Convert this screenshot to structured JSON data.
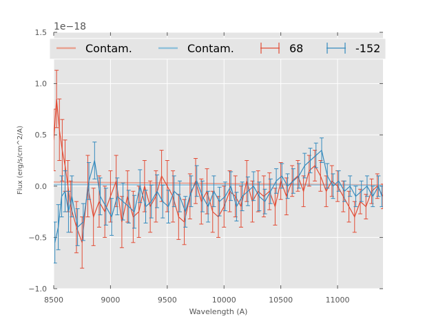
{
  "chart_data": {
    "type": "line",
    "title": "",
    "xlabel": "Wavelength (A)",
    "ylabel": "Flux (erg/s/cm^2/A)",
    "xlim": [
      8500,
      11400
    ],
    "ylim": [
      -1.0,
      1.5
    ],
    "scale_label": "1e−18",
    "x_ticks": [
      8500,
      9000,
      9500,
      10000,
      10500,
      11000
    ],
    "x_tick_labels": [
      "8500",
      "9000",
      "9500",
      "10000",
      "10500",
      "11000"
    ],
    "y_ticks": [
      -1.0,
      -0.5,
      0.0,
      0.5,
      1.0,
      1.5
    ],
    "y_tick_labels": [
      "−1.0",
      "−0.5",
      "0.0",
      "0.5",
      "1.0",
      "1.5"
    ],
    "grid": true,
    "legend_position": "top",
    "legend": [
      "Contam.",
      "Contam.",
      "68",
      "-152"
    ],
    "colors": {
      "series_68": "#e24a33",
      "series_152": "#348abd",
      "contam_68": "#e8a08f",
      "contam_152": "#8fc0da",
      "panel_bg": "#e5e5e5",
      "grid": "#ffffff"
    },
    "series": [
      {
        "name": "Contam.",
        "kind": "line",
        "x": [
          8500,
          9000,
          9500,
          10000,
          10500,
          11000,
          11400
        ],
        "y": [
          0.04,
          0.035,
          0.03,
          0.025,
          0.02,
          0.015,
          0.01
        ]
      },
      {
        "name": "Contam.",
        "kind": "line",
        "x": [
          8500,
          9000,
          9500,
          10000,
          10500,
          11000,
          11400
        ],
        "y": [
          0.015,
          0.015,
          0.01,
          0.01,
          0.01,
          0.01,
          0.005
        ]
      },
      {
        "name": "68",
        "kind": "errorbar",
        "x": [
          8500,
          8525,
          8550,
          8575,
          8600,
          8625,
          8650,
          8700,
          8750,
          8800,
          8850,
          8900,
          8950,
          9000,
          9050,
          9100,
          9150,
          9200,
          9250,
          9300,
          9350,
          9400,
          9450,
          9500,
          9550,
          9600,
          9650,
          9700,
          9750,
          9800,
          9850,
          9900,
          9950,
          10000,
          10050,
          10100,
          10150,
          10200,
          10250,
          10300,
          10350,
          10400,
          10450,
          10500,
          10550,
          10600,
          10650,
          10700,
          10750,
          10800,
          10850,
          10900,
          10950,
          11000,
          11050,
          11100,
          11150,
          11200,
          11250,
          11300,
          11350,
          11400
        ],
        "y": [
          0.45,
          0.85,
          0.55,
          0.35,
          0.2,
          0.0,
          -0.2,
          -0.4,
          -0.55,
          0.0,
          -0.3,
          -0.15,
          -0.25,
          -0.1,
          0.05,
          -0.35,
          -0.1,
          -0.3,
          -0.25,
          0.0,
          -0.2,
          -0.1,
          0.1,
          0.0,
          -0.1,
          -0.3,
          -0.35,
          -0.1,
          0.05,
          -0.15,
          -0.05,
          -0.25,
          -0.3,
          -0.2,
          -0.05,
          -0.1,
          -0.2,
          0.05,
          -0.15,
          -0.05,
          -0.1,
          -0.05,
          -0.2,
          0.05,
          -0.1,
          0.05,
          0.1,
          -0.05,
          0.15,
          0.2,
          0.1,
          -0.05,
          0.05,
          0.0,
          -0.1,
          -0.2,
          -0.3,
          -0.15,
          -0.2,
          -0.05,
          0.0,
          -0.1
        ],
        "err": [
          0.3,
          0.28,
          0.3,
          0.3,
          0.25,
          0.25,
          0.25,
          0.25,
          0.25,
          0.3,
          0.28,
          0.25,
          0.25,
          0.25,
          0.25,
          0.25,
          0.25,
          0.25,
          0.25,
          0.25,
          0.25,
          0.25,
          0.25,
          0.25,
          0.25,
          0.22,
          0.22,
          0.22,
          0.22,
          0.22,
          0.22,
          0.2,
          0.2,
          0.2,
          0.2,
          0.2,
          0.2,
          0.2,
          0.2,
          0.2,
          0.2,
          0.18,
          0.18,
          0.18,
          0.18,
          0.15,
          0.15,
          0.15,
          0.15,
          0.15,
          0.15,
          0.15,
          0.15,
          0.15,
          0.15,
          0.15,
          0.15,
          0.12,
          0.12,
          0.12,
          0.12,
          0.12
        ]
      },
      {
        "name": "-152",
        "kind": "errorbar",
        "x": [
          8510,
          8540,
          8570,
          8600,
          8630,
          8660,
          8710,
          8760,
          8810,
          8860,
          8910,
          8960,
          9010,
          9060,
          9110,
          9160,
          9210,
          9260,
          9310,
          9360,
          9410,
          9460,
          9510,
          9560,
          9610,
          9660,
          9710,
          9760,
          9810,
          9860,
          9910,
          9960,
          10010,
          10060,
          10110,
          10160,
          10210,
          10260,
          10310,
          10360,
          10410,
          10460,
          10510,
          10560,
          10610,
          10660,
          10710,
          10760,
          10810,
          10860,
          10910,
          10960,
          11010,
          11060,
          11110,
          11160,
          11210,
          11260,
          11310,
          11360,
          11390
        ],
        "y": [
          -0.55,
          -0.4,
          -0.1,
          -0.05,
          -0.25,
          -0.1,
          -0.4,
          -0.35,
          0.05,
          0.25,
          -0.1,
          -0.2,
          -0.3,
          -0.1,
          -0.15,
          -0.2,
          -0.25,
          0.0,
          -0.2,
          -0.15,
          -0.05,
          -0.15,
          -0.2,
          -0.05,
          -0.1,
          -0.25,
          -0.05,
          0.05,
          -0.1,
          -0.2,
          -0.05,
          -0.15,
          -0.1,
          0.0,
          -0.2,
          -0.1,
          -0.05,
          0.0,
          -0.1,
          -0.15,
          -0.05,
          0.05,
          0.1,
          0.0,
          0.05,
          0.1,
          0.2,
          0.25,
          0.3,
          0.35,
          0.1,
          0.0,
          0.05,
          -0.05,
          0.0,
          -0.1,
          -0.05,
          0.0,
          -0.1,
          0.0,
          -0.1
        ],
        "err": [
          0.2,
          0.22,
          0.2,
          0.2,
          0.2,
          0.2,
          0.18,
          0.18,
          0.18,
          0.18,
          0.18,
          0.18,
          0.18,
          0.18,
          0.18,
          0.16,
          0.16,
          0.16,
          0.16,
          0.16,
          0.16,
          0.16,
          0.16,
          0.15,
          0.15,
          0.15,
          0.15,
          0.15,
          0.15,
          0.15,
          0.15,
          0.14,
          0.14,
          0.14,
          0.14,
          0.14,
          0.14,
          0.14,
          0.14,
          0.12,
          0.12,
          0.12,
          0.12,
          0.12,
          0.12,
          0.12,
          0.12,
          0.12,
          0.12,
          0.12,
          0.12,
          0.12,
          0.1,
          0.1,
          0.1,
          0.1,
          0.1,
          0.1,
          0.1,
          0.1,
          0.1
        ]
      }
    ]
  }
}
